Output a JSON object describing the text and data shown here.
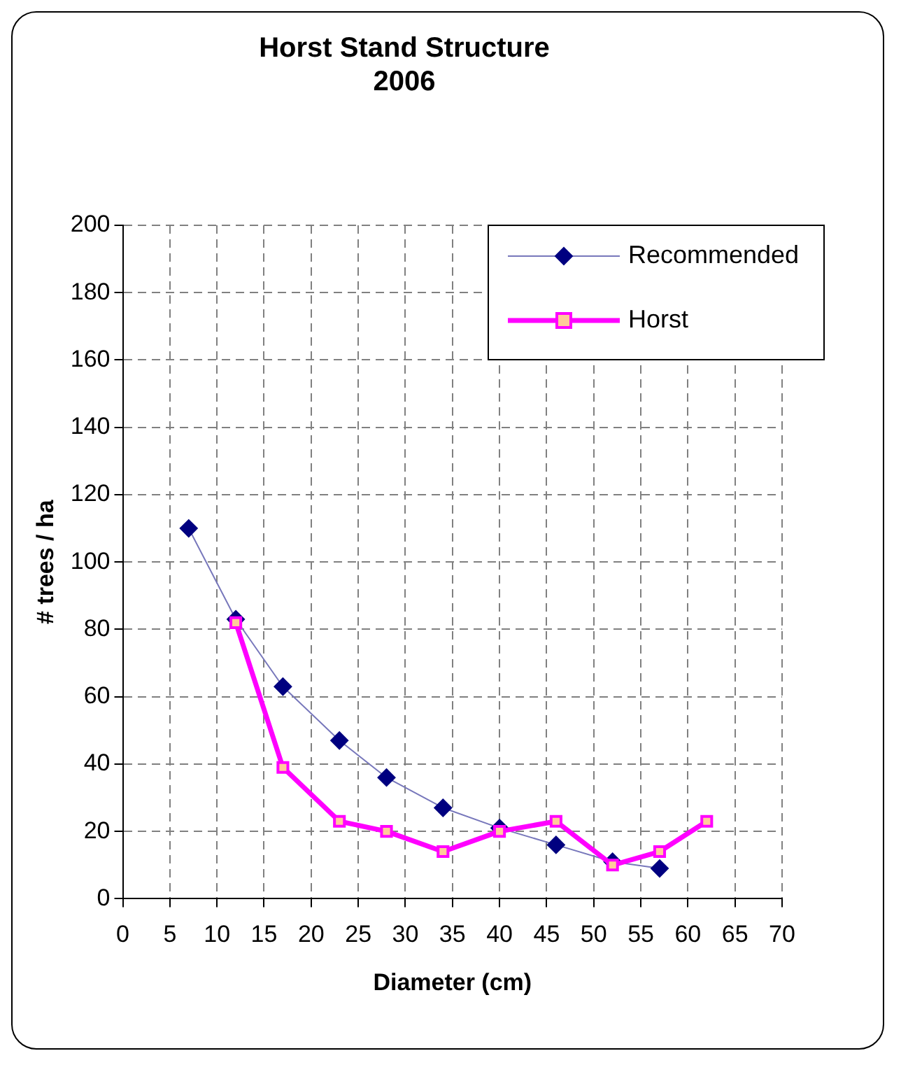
{
  "chart_data": {
    "type": "line",
    "title": "Horst Stand Structure\n2006",
    "xlabel": "Diameter (cm)",
    "ylabel": "# trees / ha",
    "xlim": [
      0,
      70
    ],
    "xticks": [
      0,
      5,
      10,
      15,
      20,
      25,
      30,
      35,
      40,
      45,
      50,
      55,
      60,
      65,
      70
    ],
    "ylim": [
      0,
      200
    ],
    "yticks": [
      0,
      20,
      40,
      60,
      80,
      100,
      120,
      140,
      160,
      180,
      200
    ],
    "grid": true,
    "legend": "top right",
    "series": [
      {
        "name": "Recommended",
        "color": "#000080",
        "marker": "diamond",
        "x": [
          7,
          12,
          17,
          23,
          28,
          34,
          40,
          46,
          52,
          57
        ],
        "values": [
          110,
          83,
          63,
          47,
          36,
          27,
          21,
          16,
          11,
          9
        ]
      },
      {
        "name": "Horst",
        "color": "#ff00ff",
        "marker": "square",
        "x": [
          12,
          17,
          23,
          28,
          34,
          40,
          46,
          52,
          57,
          62
        ],
        "values": [
          82,
          39,
          23,
          20,
          14,
          20,
          23,
          10,
          14,
          23
        ]
      }
    ]
  }
}
